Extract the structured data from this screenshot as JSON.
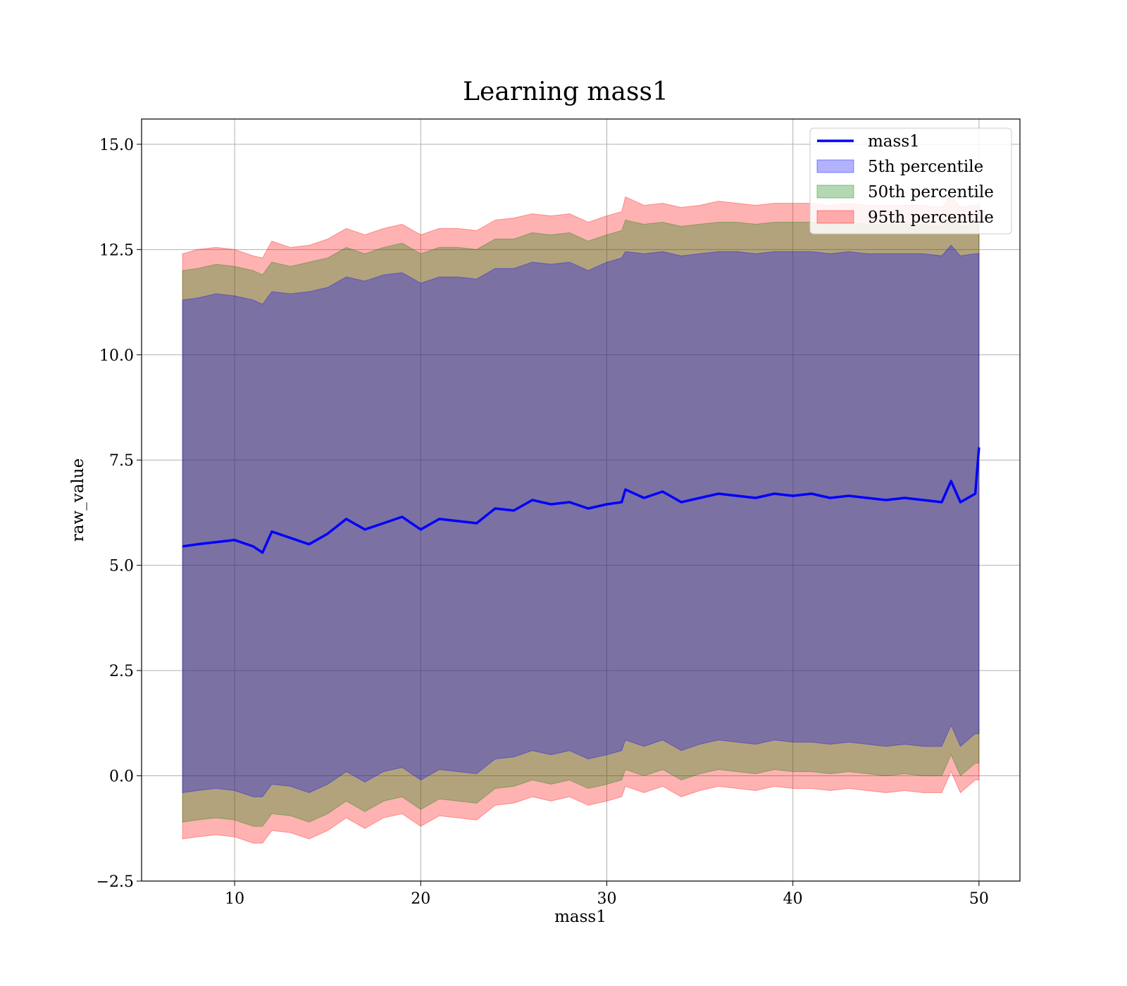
{
  "chart_data": {
    "type": "area",
    "title": "Learning mass1",
    "xlabel": "mass1",
    "ylabel": "raw_value",
    "xlim": [
      5.0,
      52.2
    ],
    "ylim": [
      -2.5,
      15.6
    ],
    "x_ticks": [
      "10",
      "20",
      "30",
      "40",
      "50"
    ],
    "y_ticks": [
      "−2.5",
      "0.0",
      "2.5",
      "5.0",
      "7.5",
      "10.0",
      "12.5",
      "15.0"
    ],
    "grid": true,
    "legend_position": "top-right",
    "legend": [
      "mass1",
      "5th percentile",
      "50th percentile",
      "95th percentile"
    ],
    "x": [
      7.2,
      8,
      9,
      10,
      11,
      11.5,
      12,
      13,
      14,
      15,
      16,
      17,
      18,
      19,
      20,
      21,
      22,
      23,
      24,
      25,
      26,
      27,
      28,
      29,
      30,
      30.8,
      31,
      32,
      33,
      34,
      35,
      36,
      37,
      38,
      39,
      40,
      41,
      42,
      43,
      44,
      45,
      46,
      47,
      48,
      48.5,
      49,
      49.8,
      50
    ],
    "series": [
      {
        "name": "mass1",
        "kind": "line",
        "color": "#0000ff",
        "values": [
          5.45,
          5.5,
          5.55,
          5.6,
          5.45,
          5.3,
          5.8,
          5.65,
          5.5,
          5.75,
          6.1,
          5.85,
          6.0,
          6.15,
          5.85,
          6.1,
          6.05,
          6.0,
          6.35,
          6.3,
          6.55,
          6.45,
          6.5,
          6.35,
          6.45,
          6.5,
          6.8,
          6.6,
          6.75,
          6.5,
          6.6,
          6.7,
          6.65,
          6.6,
          6.7,
          6.65,
          6.7,
          6.6,
          6.65,
          6.6,
          6.55,
          6.6,
          6.55,
          6.5,
          7.0,
          6.5,
          6.7,
          7.8
        ]
      },
      {
        "name": "5th percentile",
        "kind": "band",
        "color": "#0000ff",
        "upper": [
          11.3,
          11.35,
          11.45,
          11.4,
          11.3,
          11.2,
          11.5,
          11.45,
          11.5,
          11.6,
          11.85,
          11.75,
          11.9,
          11.95,
          11.7,
          11.85,
          11.85,
          11.8,
          12.05,
          12.05,
          12.2,
          12.15,
          12.2,
          12.0,
          12.2,
          12.3,
          12.45,
          12.4,
          12.45,
          12.35,
          12.4,
          12.45,
          12.45,
          12.4,
          12.45,
          12.45,
          12.45,
          12.4,
          12.45,
          12.4,
          12.4,
          12.4,
          12.4,
          12.35,
          12.6,
          12.35,
          12.4,
          12.4
        ],
        "lower": [
          -0.4,
          -0.35,
          -0.3,
          -0.35,
          -0.5,
          -0.5,
          -0.2,
          -0.25,
          -0.4,
          -0.2,
          0.1,
          -0.15,
          0.1,
          0.2,
          -0.1,
          0.15,
          0.1,
          0.05,
          0.4,
          0.45,
          0.6,
          0.5,
          0.6,
          0.4,
          0.5,
          0.6,
          0.85,
          0.7,
          0.85,
          0.6,
          0.75,
          0.85,
          0.8,
          0.75,
          0.85,
          0.8,
          0.8,
          0.75,
          0.8,
          0.75,
          0.7,
          0.75,
          0.7,
          0.7,
          1.2,
          0.7,
          1.0,
          1.0
        ]
      },
      {
        "name": "50th percentile",
        "kind": "band",
        "color": "#008000",
        "upper": [
          12.0,
          12.05,
          12.15,
          12.1,
          12.0,
          11.9,
          12.2,
          12.1,
          12.2,
          12.3,
          12.55,
          12.4,
          12.55,
          12.65,
          12.4,
          12.55,
          12.55,
          12.5,
          12.75,
          12.75,
          12.9,
          12.85,
          12.9,
          12.7,
          12.85,
          12.95,
          13.2,
          13.1,
          13.15,
          13.05,
          13.1,
          13.15,
          13.15,
          13.1,
          13.15,
          13.15,
          13.15,
          13.1,
          13.15,
          13.1,
          13.1,
          13.1,
          13.1,
          13.05,
          13.3,
          13.05,
          13.1,
          13.1
        ],
        "lower": [
          -1.1,
          -1.05,
          -1.0,
          -1.05,
          -1.2,
          -1.2,
          -0.9,
          -0.95,
          -1.1,
          -0.9,
          -0.6,
          -0.85,
          -0.6,
          -0.5,
          -0.8,
          -0.55,
          -0.6,
          -0.65,
          -0.3,
          -0.25,
          -0.1,
          -0.2,
          -0.1,
          -0.3,
          -0.2,
          -0.1,
          0.15,
          0.0,
          0.15,
          -0.1,
          0.05,
          0.15,
          0.1,
          0.05,
          0.15,
          0.1,
          0.1,
          0.05,
          0.1,
          0.05,
          0.0,
          0.05,
          0.0,
          0.0,
          0.5,
          0.0,
          0.3,
          0.3
        ]
      },
      {
        "name": "95th percentile",
        "kind": "band",
        "color": "#ff0000",
        "upper": [
          12.4,
          12.5,
          12.55,
          12.5,
          12.35,
          12.3,
          12.7,
          12.55,
          12.6,
          12.75,
          13.0,
          12.85,
          13.0,
          13.1,
          12.85,
          13.0,
          13.0,
          12.95,
          13.2,
          13.25,
          13.35,
          13.3,
          13.35,
          13.15,
          13.3,
          13.4,
          13.75,
          13.55,
          13.6,
          13.5,
          13.55,
          13.65,
          13.6,
          13.55,
          13.6,
          13.6,
          13.6,
          13.55,
          13.6,
          13.55,
          13.55,
          13.55,
          13.55,
          13.5,
          13.8,
          13.5,
          13.55,
          13.55
        ],
        "lower": [
          -1.5,
          -1.45,
          -1.4,
          -1.45,
          -1.6,
          -1.6,
          -1.3,
          -1.35,
          -1.5,
          -1.3,
          -1.0,
          -1.25,
          -1.0,
          -0.9,
          -1.2,
          -0.95,
          -1.0,
          -1.05,
          -0.7,
          -0.65,
          -0.5,
          -0.6,
          -0.5,
          -0.7,
          -0.6,
          -0.5,
          -0.25,
          -0.4,
          -0.25,
          -0.5,
          -0.35,
          -0.25,
          -0.3,
          -0.35,
          -0.25,
          -0.3,
          -0.3,
          -0.35,
          -0.3,
          -0.35,
          -0.4,
          -0.35,
          -0.4,
          -0.4,
          0.1,
          -0.4,
          -0.1,
          -0.1
        ]
      }
    ]
  }
}
